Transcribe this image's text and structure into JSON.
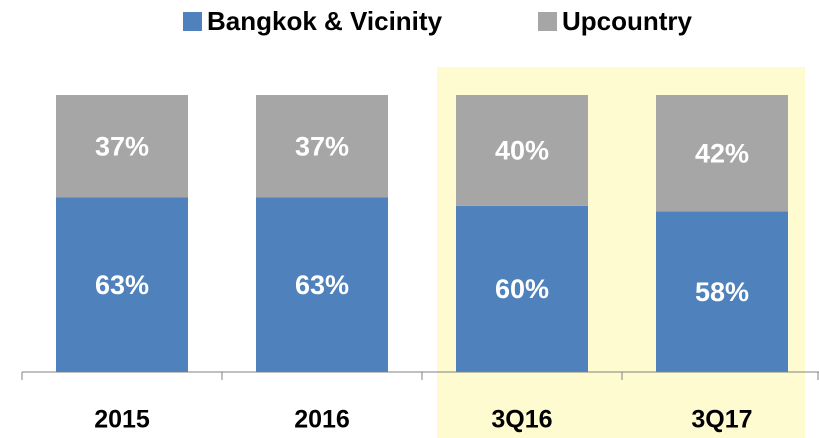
{
  "chart_data": {
    "type": "stacked_bar",
    "categories": [
      "2015",
      "2016",
      "3Q16",
      "3Q17"
    ],
    "series": [
      {
        "name": "Bangkok & Vicinity",
        "color": "#4f81bd",
        "values": [
          63,
          63,
          60,
          58
        ],
        "value_labels": [
          "63%",
          "63%",
          "60%",
          "58%"
        ]
      },
      {
        "name": "Upcountry",
        "color": "#a6a6a6",
        "values": [
          37,
          37,
          40,
          42
        ],
        "value_labels": [
          "37%",
          "37%",
          "40%",
          "42%"
        ]
      }
    ],
    "ylim": [
      0,
      100
    ],
    "legend": "top",
    "highlight": {
      "color": "#fefbd0",
      "categories": [
        2,
        3
      ]
    }
  }
}
